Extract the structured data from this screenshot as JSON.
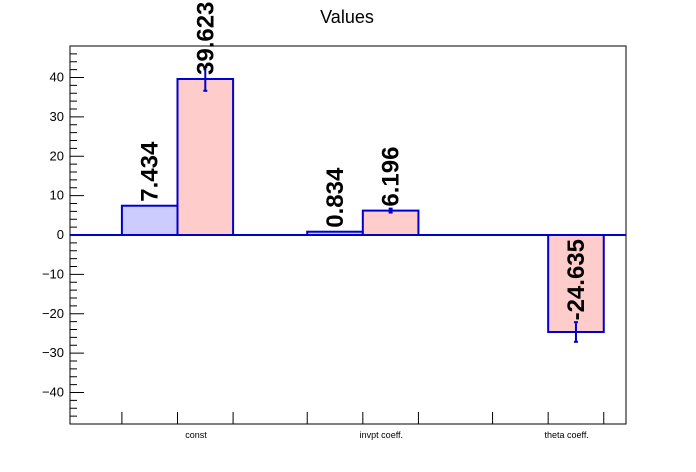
{
  "chart_data": {
    "type": "bar",
    "title": "Values",
    "categories": [
      "const",
      "invpt coeff.",
      "theta coeff."
    ],
    "ylim": [
      -48,
      48
    ],
    "yticks": [
      -40,
      -30,
      -20,
      -10,
      0,
      10,
      20,
      30,
      40
    ],
    "series": [
      {
        "values": [
          7.434,
          0.834,
          null
        ],
        "labels": [
          "7.434",
          "0.834",
          ""
        ],
        "errors": [
          null,
          null,
          null
        ],
        "fill": "#ccccff",
        "stroke": "#0000cc"
      },
      {
        "values": [
          39.623,
          6.196,
          -24.635
        ],
        "labels": [
          "39.623",
          "6.196",
          "-24.635"
        ],
        "errors": [
          3.0,
          0.5,
          2.5
        ],
        "fill": "#ffcccc",
        "stroke": "#0000cc"
      }
    ],
    "grid": false,
    "legend": "none"
  }
}
